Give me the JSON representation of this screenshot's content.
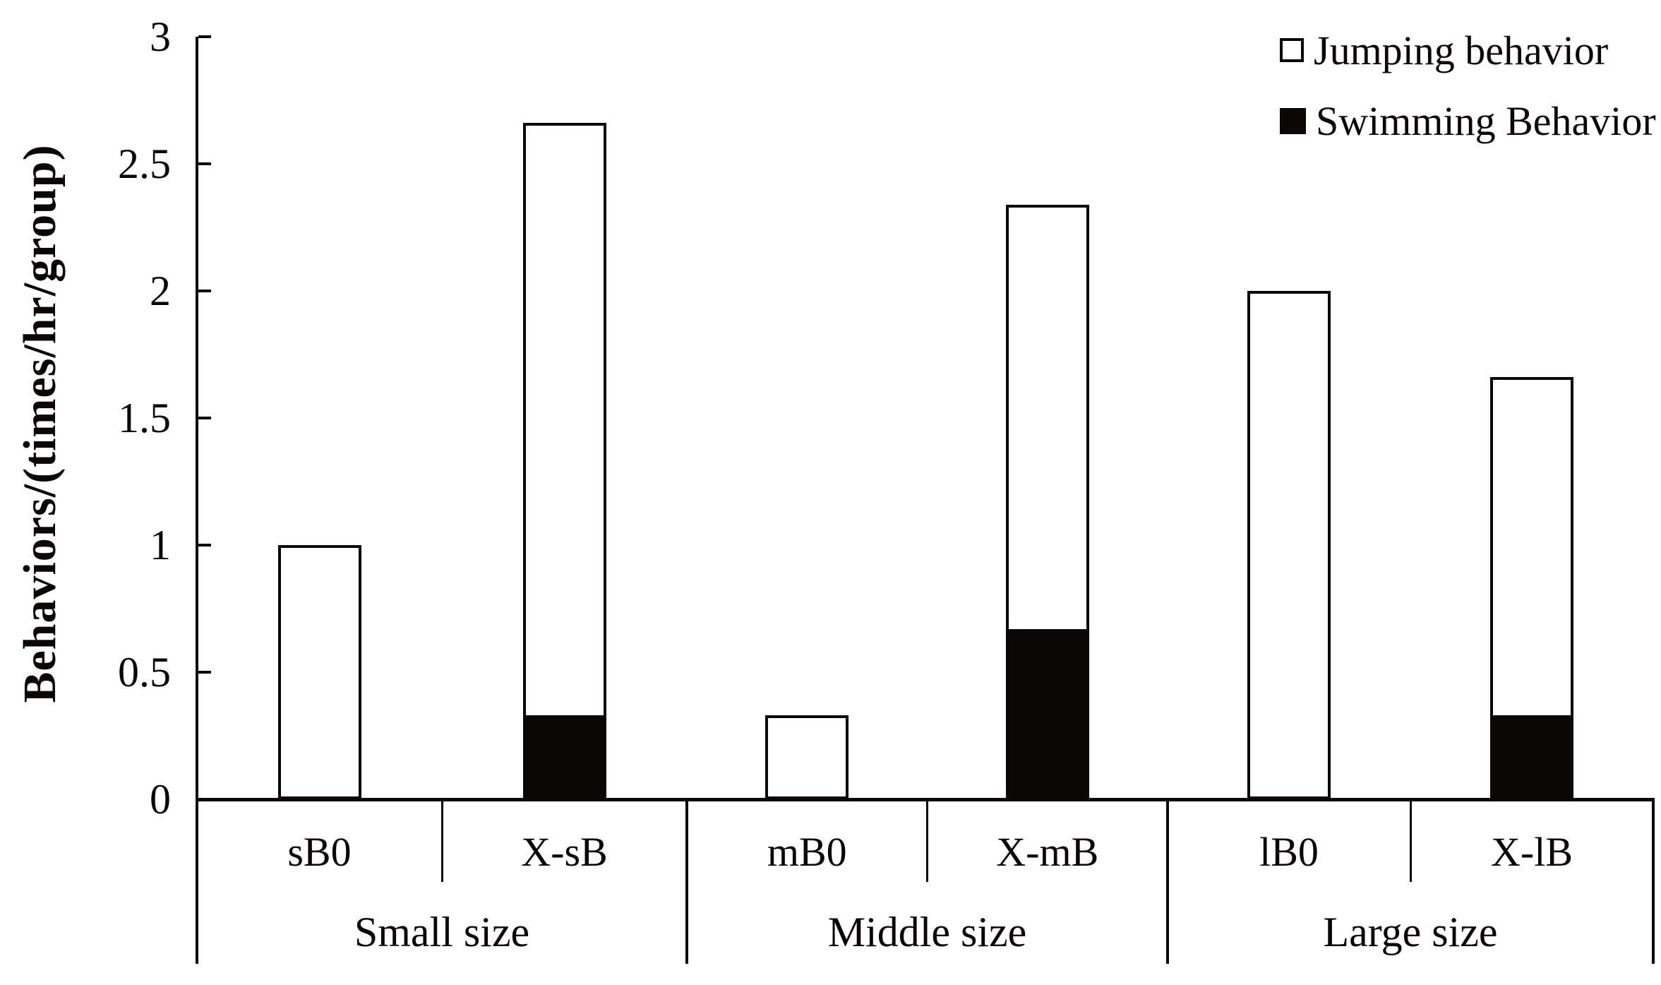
{
  "colors": {
    "ink": "#0b0707",
    "background": "#ffffff",
    "bar_fill_jumping": "#ffffff",
    "bar_fill_swimming": "#0b0707"
  },
  "legend": {
    "position": "top-right",
    "items": [
      {
        "label": "Jumping behavior",
        "swatch": "open"
      },
      {
        "label": "Swimming Behavior",
        "swatch": "filled"
      }
    ]
  },
  "chart_data": {
    "type": "bar",
    "stacked": true,
    "title": "",
    "xlabel": "",
    "ylabel": "Behaviors/(times/hr/group)",
    "ylim": [
      0,
      3
    ],
    "yticks": [
      0,
      0.5,
      1,
      1.5,
      2,
      2.5,
      3
    ],
    "ytick_labels": [
      "0",
      "0.5",
      "1",
      "1.5",
      "2",
      "2.5",
      "3"
    ],
    "grid": false,
    "legend_position": "top-right",
    "categories": [
      "sB0",
      "X-sB",
      "mB0",
      "X-mB",
      "lB0",
      "X-lB"
    ],
    "series": [
      {
        "name": "Jumping behavior",
        "fill": "#ffffff",
        "values": [
          1.0,
          2.33,
          0.33,
          1.67,
          2.0,
          1.33
        ]
      },
      {
        "name": "Swimming Behavior",
        "fill": "#0b0707",
        "values": [
          0,
          0.33,
          0,
          0.67,
          0,
          0.33
        ]
      }
    ],
    "totals": [
      1.0,
      2.67,
      0.33,
      2.33,
      2.0,
      1.67
    ],
    "groups": [
      {
        "label": "Small size",
        "bars": [
          {
            "label": "sB0",
            "jumping": 1.0,
            "swimming": 0
          },
          {
            "label": "X-sB",
            "jumping": 2.33,
            "swimming": 0.33
          }
        ]
      },
      {
        "label": "Middle size",
        "bars": [
          {
            "label": "mB0",
            "jumping": 0.33,
            "swimming": 0
          },
          {
            "label": "X-mB",
            "jumping": 1.67,
            "swimming": 0.67
          }
        ]
      },
      {
        "label": "Large size",
        "bars": [
          {
            "label": "lB0",
            "jumping": 2.0,
            "swimming": 0
          },
          {
            "label": "X-lB",
            "jumping": 1.33,
            "swimming": 0.33
          }
        ]
      }
    ]
  }
}
